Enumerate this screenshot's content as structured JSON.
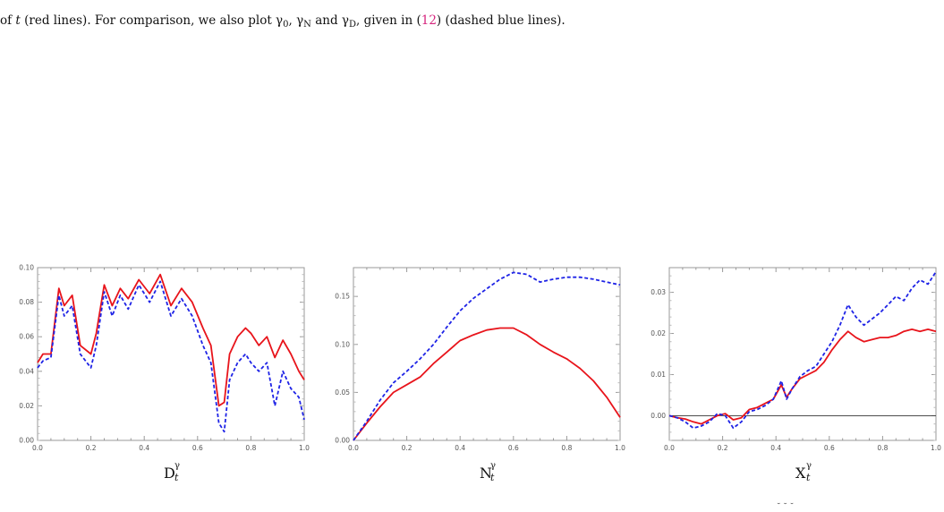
{
  "caption": {
    "line1_parts": [
      "of",
      "t",
      "(red lines). For comparison, we also plot",
      "γ",
      "0",
      ",",
      "γ",
      "N",
      "and",
      "γ",
      "D",
      ", given in (",
      "12",
      ") (dashed blue lines)."
    ]
  },
  "chart_data": [
    {
      "type": "line",
      "xlabel": "D",
      "xlabel_sup": "γ",
      "xlabel_sub": "t",
      "xlim": [
        0,
        1
      ],
      "ylim": [
        0,
        0.1
      ],
      "xticks": [
        "0.0",
        "0.2",
        "0.4",
        "0.6",
        "0.8",
        "1.0"
      ],
      "yticks": [
        "0.00",
        "0.02",
        "0.04",
        "0.06",
        "0.08",
        "0.10"
      ],
      "ytick_values": [
        0,
        0.02,
        0.04,
        0.06,
        0.08,
        0.1
      ],
      "series": [
        {
          "color": "#e8141b",
          "style": "solid",
          "x": [
            0,
            0.02,
            0.05,
            0.08,
            0.1,
            0.13,
            0.16,
            0.2,
            0.22,
            0.25,
            0.28,
            0.31,
            0.34,
            0.38,
            0.42,
            0.46,
            0.5,
            0.54,
            0.58,
            0.62,
            0.65,
            0.68,
            0.7,
            0.72,
            0.75,
            0.78,
            0.8,
            0.83,
            0.86,
            0.89,
            0.92,
            0.95,
            0.98,
            1.0
          ],
          "y": [
            0.045,
            0.05,
            0.05,
            0.088,
            0.078,
            0.084,
            0.055,
            0.05,
            0.062,
            0.09,
            0.078,
            0.088,
            0.082,
            0.093,
            0.085,
            0.096,
            0.078,
            0.088,
            0.08,
            0.065,
            0.055,
            0.02,
            0.022,
            0.05,
            0.06,
            0.065,
            0.062,
            0.055,
            0.06,
            0.048,
            0.058,
            0.05,
            0.04,
            0.035
          ]
        },
        {
          "color": "#1e23e6",
          "style": "dashed",
          "x": [
            0,
            0.02,
            0.05,
            0.08,
            0.1,
            0.13,
            0.16,
            0.2,
            0.22,
            0.25,
            0.28,
            0.31,
            0.34,
            0.38,
            0.42,
            0.46,
            0.5,
            0.54,
            0.58,
            0.62,
            0.65,
            0.68,
            0.7,
            0.72,
            0.75,
            0.78,
            0.8,
            0.83,
            0.86,
            0.89,
            0.92,
            0.95,
            0.98,
            1.0
          ],
          "y": [
            0.042,
            0.046,
            0.048,
            0.084,
            0.072,
            0.078,
            0.05,
            0.042,
            0.055,
            0.086,
            0.072,
            0.084,
            0.076,
            0.09,
            0.08,
            0.092,
            0.072,
            0.082,
            0.072,
            0.055,
            0.045,
            0.01,
            0.005,
            0.035,
            0.045,
            0.05,
            0.045,
            0.04,
            0.045,
            0.02,
            0.04,
            0.03,
            0.025,
            0.012
          ]
        }
      ]
    },
    {
      "type": "line",
      "xlabel": "N",
      "xlabel_sup": "γ",
      "xlabel_sub": "t",
      "xlim": [
        0,
        1
      ],
      "ylim": [
        0,
        0.18
      ],
      "xticks": [
        "0.0",
        "0.2",
        "0.4",
        "0.6",
        "0.8",
        "1.0"
      ],
      "yticks": [
        "0.00",
        "0.05",
        "0.10",
        "0.15"
      ],
      "ytick_values": [
        0,
        0.05,
        0.1,
        0.15
      ],
      "series": [
        {
          "color": "#e8141b",
          "style": "solid",
          "x": [
            0,
            0.05,
            0.1,
            0.15,
            0.2,
            0.25,
            0.3,
            0.35,
            0.4,
            0.45,
            0.5,
            0.55,
            0.6,
            0.65,
            0.7,
            0.75,
            0.8,
            0.85,
            0.9,
            0.95,
            1.0
          ],
          "y": [
            0,
            0.018,
            0.035,
            0.05,
            0.058,
            0.066,
            0.08,
            0.092,
            0.104,
            0.11,
            0.115,
            0.117,
            0.117,
            0.11,
            0.1,
            0.092,
            0.085,
            0.075,
            0.062,
            0.045,
            0.024
          ]
        },
        {
          "color": "#1e23e6",
          "style": "dashed",
          "x": [
            0,
            0.05,
            0.1,
            0.15,
            0.2,
            0.25,
            0.3,
            0.35,
            0.4,
            0.45,
            0.5,
            0.55,
            0.6,
            0.65,
            0.7,
            0.75,
            0.8,
            0.85,
            0.9,
            0.95,
            1.0
          ],
          "y": [
            0,
            0.02,
            0.042,
            0.06,
            0.072,
            0.085,
            0.1,
            0.118,
            0.135,
            0.148,
            0.158,
            0.168,
            0.175,
            0.173,
            0.165,
            0.168,
            0.17,
            0.17,
            0.168,
            0.165,
            0.162
          ]
        }
      ]
    },
    {
      "type": "line",
      "xlabel": "X",
      "xlabel_sup": "γ",
      "xlabel_sub": "t",
      "xlim": [
        0,
        1
      ],
      "ylim": [
        -0.006,
        0.036
      ],
      "xticks": [
        "0.0",
        "0.2",
        "0.4",
        "0.6",
        "0.8",
        "1.0"
      ],
      "yticks": [
        "0.00",
        "0.01",
        "0.02",
        "0.03"
      ],
      "ytick_values": [
        0,
        0.01,
        0.02,
        0.03
      ],
      "series": [
        {
          "color": "#e8141b",
          "style": "solid",
          "x": [
            0,
            0.03,
            0.06,
            0.09,
            0.12,
            0.15,
            0.18,
            0.21,
            0.24,
            0.27,
            0.3,
            0.33,
            0.36,
            0.39,
            0.42,
            0.44,
            0.46,
            0.49,
            0.52,
            0.55,
            0.58,
            0.61,
            0.64,
            0.67,
            0.7,
            0.73,
            0.76,
            0.79,
            0.82,
            0.85,
            0.88,
            0.91,
            0.94,
            0.97,
            1.0
          ],
          "y": [
            0,
            -0.0005,
            -0.0008,
            -0.0015,
            -0.002,
            -0.001,
            0,
            0.0005,
            -0.001,
            -0.0005,
            0.0015,
            0.002,
            0.003,
            0.004,
            0.0075,
            0.0045,
            0.0065,
            0.009,
            0.01,
            0.011,
            0.013,
            0.016,
            0.0185,
            0.0205,
            0.019,
            0.018,
            0.0185,
            0.019,
            0.019,
            0.0195,
            0.0205,
            0.021,
            0.0205,
            0.021,
            0.0205
          ]
        },
        {
          "color": "#1e23e6",
          "style": "dashed",
          "x": [
            0,
            0.03,
            0.06,
            0.09,
            0.12,
            0.15,
            0.18,
            0.21,
            0.24,
            0.27,
            0.3,
            0.33,
            0.36,
            0.39,
            0.42,
            0.44,
            0.46,
            0.49,
            0.52,
            0.55,
            0.58,
            0.61,
            0.64,
            0.67,
            0.7,
            0.73,
            0.76,
            0.79,
            0.82,
            0.85,
            0.88,
            0.91,
            0.94,
            0.97,
            1.0
          ],
          "y": [
            0,
            -0.0005,
            -0.0015,
            -0.003,
            -0.0025,
            -0.0015,
            0.0005,
            0,
            -0.003,
            -0.0015,
            0.001,
            0.0015,
            0.0025,
            0.004,
            0.0085,
            0.004,
            0.0065,
            0.0095,
            0.011,
            0.012,
            0.015,
            0.018,
            0.022,
            0.027,
            0.024,
            0.022,
            0.0235,
            0.025,
            0.027,
            0.029,
            0.028,
            0.031,
            0.033,
            0.032,
            0.035
          ]
        }
      ]
    }
  ],
  "bottom_fragment": "˘    ˘          ˘"
}
